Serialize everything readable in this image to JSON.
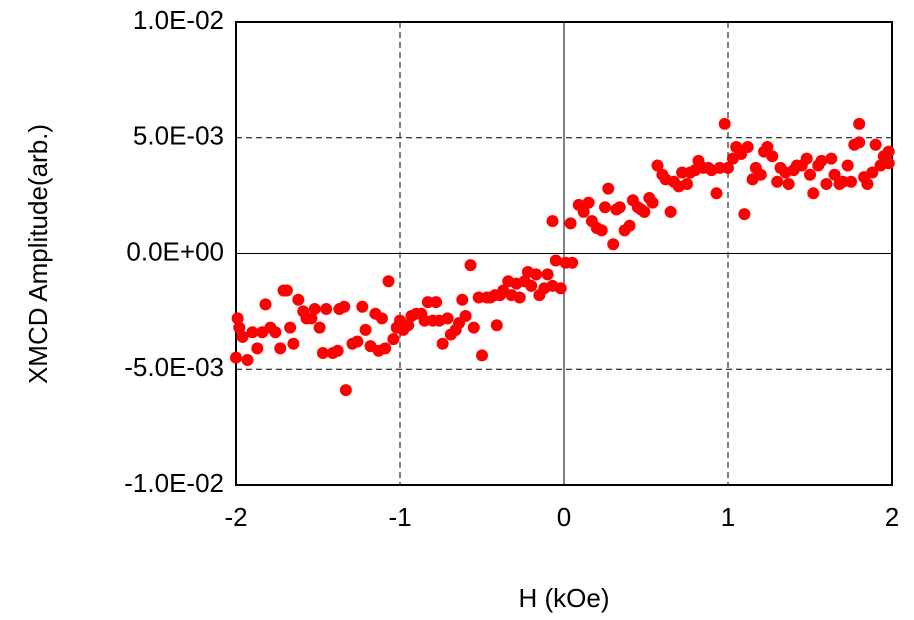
{
  "chart_data": {
    "type": "scatter",
    "xlabel": "H (kOe)",
    "ylabel": "XMCD Amplitude(arb.)",
    "color": "#ff0000",
    "grid": true,
    "xlim": [
      -2,
      2
    ],
    "xticks": [
      -2,
      -1,
      0,
      1,
      2
    ],
    "ylim": [
      -0.01,
      0.01
    ],
    "yticks": [
      {
        "value": -0.01,
        "label": "-1.0E-02"
      },
      {
        "value": -0.005,
        "label": "-5.0E-03"
      },
      {
        "value": 0,
        "label": "0.0E+00"
      },
      {
        "value": 0.005,
        "label": "5.0E-03"
      },
      {
        "value": 0.01,
        "label": "1.0E-02"
      }
    ],
    "x": [
      -2.0,
      -1.99,
      -1.98,
      -1.96,
      -1.93,
      -1.9,
      -1.87,
      -1.84,
      -1.82,
      -1.79,
      -1.76,
      -1.73,
      -1.71,
      -1.69,
      -1.67,
      -1.65,
      -1.62,
      -1.59,
      -1.57,
      -1.54,
      -1.52,
      -1.49,
      -1.47,
      -1.45,
      -1.41,
      -1.38,
      -1.37,
      -1.34,
      -1.33,
      -1.29,
      -1.26,
      -1.23,
      -1.21,
      -1.18,
      -1.15,
      -1.13,
      -1.11,
      -1.09,
      -1.07,
      -1.04,
      -1.02,
      -1.0,
      -0.98,
      -0.95,
      -0.93,
      -0.9,
      -0.87,
      -0.85,
      -0.83,
      -0.8,
      -0.78,
      -0.76,
      -0.74,
      -0.71,
      -0.69,
      -0.66,
      -0.64,
      -0.62,
      -0.6,
      -0.57,
      -0.55,
      -0.52,
      -0.5,
      -0.47,
      -0.45,
      -0.42,
      -0.41,
      -0.39,
      -0.37,
      -0.34,
      -0.32,
      -0.29,
      -0.27,
      -0.24,
      -0.22,
      -0.2,
      -0.17,
      -0.15,
      -0.12,
      -0.1,
      -0.07,
      -0.07,
      -0.05,
      -0.02,
      0.01,
      0.04,
      0.05,
      0.09,
      0.12,
      0.15,
      0.17,
      0.2,
      0.23,
      0.25,
      0.27,
      0.3,
      0.32,
      0.34,
      0.37,
      0.4,
      0.42,
      0.45,
      0.47,
      0.49,
      0.52,
      0.54,
      0.57,
      0.6,
      0.62,
      0.65,
      0.67,
      0.7,
      0.72,
      0.75,
      0.77,
      0.8,
      0.82,
      0.85,
      0.88,
      0.9,
      0.93,
      0.95,
      0.98,
      1.0,
      1.03,
      1.05,
      1.08,
      1.1,
      1.12,
      1.15,
      1.17,
      1.2,
      1.22,
      1.24,
      1.27,
      1.3,
      1.32,
      1.35,
      1.37,
      1.4,
      1.42,
      1.45,
      1.48,
      1.5,
      1.52,
      1.55,
      1.57,
      1.6,
      1.63,
      1.65,
      1.68,
      1.7,
      1.73,
      1.75,
      1.77,
      1.8,
      1.8,
      1.83,
      1.85,
      1.88,
      1.9,
      1.93,
      1.95,
      1.98,
      1.98
    ],
    "values": [
      -0.0045,
      -0.0028,
      -0.0032,
      -0.0036,
      -0.0046,
      -0.0034,
      -0.0041,
      -0.0034,
      -0.0022,
      -0.0032,
      -0.0034,
      -0.0041,
      -0.0016,
      -0.0016,
      -0.0032,
      -0.0039,
      -0.002,
      -0.0025,
      -0.0028,
      -0.0028,
      -0.0024,
      -0.0032,
      -0.0043,
      -0.0024,
      -0.0043,
      -0.0042,
      -0.0024,
      -0.0023,
      -0.0059,
      -0.0039,
      -0.0038,
      -0.0023,
      -0.0033,
      -0.004,
      -0.0026,
      -0.0042,
      -0.0028,
      -0.0041,
      -0.0012,
      -0.0037,
      -0.0032,
      -0.0029,
      -0.0033,
      -0.0031,
      -0.0027,
      -0.0026,
      -0.0026,
      -0.0029,
      -0.0021,
      -0.0029,
      -0.0021,
      -0.0029,
      -0.0039,
      -0.0028,
      -0.0035,
      -0.0033,
      -0.003,
      -0.002,
      -0.0027,
      -0.0005,
      -0.0032,
      -0.0019,
      -0.0044,
      -0.0019,
      -0.0019,
      -0.0018,
      -0.0031,
      -0.0018,
      -0.0016,
      -0.0012,
      -0.0018,
      -0.0013,
      -0.0019,
      -0.0012,
      -0.0008,
      -0.0014,
      -0.0009,
      -0.0018,
      -0.0015,
      -0.0009,
      -0.0014,
      0.0014,
      -0.0003,
      -0.0015,
      -0.0004,
      0.0013,
      -0.0004,
      0.0021,
      0.0018,
      0.0022,
      0.0014,
      0.0011,
      0.001,
      0.002,
      0.0028,
      0.0004,
      0.0019,
      0.002,
      0.001,
      0.0012,
      0.0023,
      0.002,
      0.0019,
      0.0018,
      0.0024,
      0.0022,
      0.0038,
      0.0034,
      0.0032,
      0.0018,
      0.0031,
      0.0029,
      0.0035,
      0.003,
      0.0035,
      0.0036,
      0.004,
      0.0037,
      0.0037,
      0.0036,
      0.0026,
      0.0037,
      0.0056,
      0.0037,
      0.0041,
      0.0046,
      0.0043,
      0.0017,
      0.0046,
      0.0032,
      0.0037,
      0.0034,
      0.0044,
      0.0046,
      0.0042,
      0.0031,
      0.0037,
      0.0035,
      0.003,
      0.0036,
      0.0038,
      0.0038,
      0.0041,
      0.0034,
      0.0026,
      0.0038,
      0.004,
      0.003,
      0.0041,
      0.0034,
      0.003,
      0.0031,
      0.0038,
      0.0031,
      0.0047,
      0.0056,
      0.0048,
      0.0033,
      0.003,
      0.0035,
      0.0047,
      0.0038,
      0.0042,
      0.0039,
      0.0044
    ]
  }
}
